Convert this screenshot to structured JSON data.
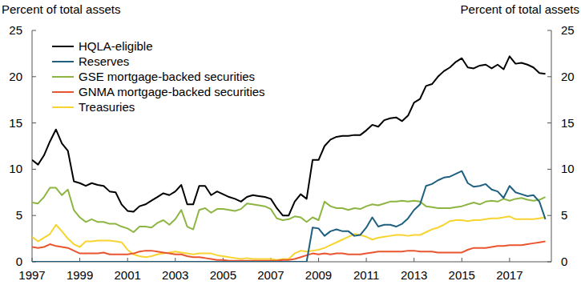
{
  "chart_data": {
    "type": "line",
    "y_label": "Percent of total assets",
    "y2_label": "Percent of total assets",
    "x": [
      1997,
      1997.25,
      1997.5,
      1997.75,
      1998,
      1998.25,
      1998.5,
      1998.75,
      1999,
      1999.25,
      1999.5,
      1999.75,
      2000,
      2000.25,
      2000.5,
      2000.75,
      2001,
      2001.25,
      2001.5,
      2001.75,
      2002,
      2002.25,
      2002.5,
      2002.75,
      2003,
      2003.25,
      2003.5,
      2003.75,
      2004,
      2004.25,
      2004.5,
      2004.75,
      2005,
      2005.25,
      2005.5,
      2005.75,
      2006,
      2006.25,
      2006.5,
      2006.75,
      2007,
      2007.25,
      2007.5,
      2007.75,
      2008,
      2008.25,
      2008.5,
      2008.75,
      2009,
      2009.25,
      2009.5,
      2009.75,
      2010,
      2010.25,
      2010.5,
      2010.75,
      2011,
      2011.25,
      2011.5,
      2011.75,
      2012,
      2012.25,
      2012.5,
      2012.75,
      2013,
      2013.25,
      2013.5,
      2013.75,
      2014,
      2014.25,
      2014.5,
      2014.75,
      2015,
      2015.25,
      2015.5,
      2015.75,
      2016,
      2016.25,
      2016.5,
      2016.75,
      2017,
      2017.25,
      2017.5,
      2017.75,
      2018,
      2018.25,
      2018.5
    ],
    "series": [
      {
        "name": "HQLA-eligible",
        "color": "#000000",
        "values": [
          11,
          10.5,
          11.5,
          13,
          14.3,
          12.8,
          12,
          8.7,
          8.5,
          8.2,
          8.5,
          8.3,
          8.2,
          7.6,
          7.5,
          6.2,
          5.5,
          5.4,
          6,
          6.2,
          6.6,
          7,
          7.4,
          7.2,
          7.6,
          8.3,
          6.2,
          6.2,
          8.2,
          8.2,
          7.2,
          7.6,
          7.3,
          7,
          6.8,
          6.5,
          7,
          7.2,
          7.1,
          7,
          6.8,
          5.8,
          5,
          5,
          6.5,
          7.3,
          6.8,
          11,
          11,
          12.5,
          13.2,
          13.5,
          13.6,
          13.6,
          13.7,
          13.7,
          14.2,
          14.8,
          14.6,
          15.3,
          15.5,
          15.6,
          15.2,
          15.8,
          17.2,
          17.6,
          19,
          19.2,
          20,
          20.6,
          21,
          21.6,
          22,
          21,
          20.9,
          21.2,
          21.3,
          20.9,
          21.3,
          20.8,
          22.2,
          21.4,
          21.5,
          21.3,
          21,
          20.4,
          20.3
        ]
      },
      {
        "name": "Reserves",
        "color": "#1f6080",
        "values": [
          0,
          0,
          0,
          0,
          0,
          0,
          0,
          0,
          0,
          0,
          0,
          0,
          0,
          0,
          0,
          0,
          0,
          0,
          0,
          0,
          0,
          0,
          0,
          0,
          0,
          0,
          0,
          0,
          0,
          0,
          0,
          0,
          0,
          0,
          0,
          0,
          0,
          0,
          0,
          0,
          0,
          0,
          0,
          0,
          0,
          0,
          0,
          3.7,
          3.6,
          2.8,
          3.3,
          3.5,
          3.3,
          3.3,
          2.8,
          2.9,
          3.7,
          4.8,
          3.8,
          4,
          4,
          3.8,
          4.1,
          4.7,
          5.6,
          6.2,
          8.2,
          8.4,
          8.8,
          9.1,
          9.2,
          9.5,
          9.8,
          8.5,
          8.1,
          8.2,
          8.4,
          7.8,
          7.6,
          6.9,
          8.2,
          7.5,
          7.3,
          7.1,
          7.2,
          6.5,
          4.6
        ]
      },
      {
        "name": "GSE mortgage-backed securities",
        "color": "#8db542",
        "values": [
          6.4,
          6.3,
          7,
          8,
          8,
          7.2,
          7.8,
          5.6,
          4.8,
          4.3,
          4.6,
          4.3,
          4.3,
          4.1,
          4.1,
          3.8,
          3.6,
          3.2,
          3.8,
          3.8,
          3.7,
          4.2,
          4.5,
          4,
          4.6,
          5.6,
          3.8,
          3.5,
          5.6,
          5.8,
          5.3,
          5.7,
          5.7,
          5.6,
          5.5,
          5.7,
          6.3,
          6.2,
          6.1,
          6,
          5.7,
          4.7,
          4.5,
          4.6,
          4.9,
          4.8,
          4.3,
          4.8,
          4.5,
          6.5,
          6,
          5.8,
          5.8,
          5.6,
          5.8,
          5.7,
          6,
          6.2,
          6.1,
          6.3,
          6.5,
          6.5,
          6.6,
          6.5,
          6.6,
          6.5,
          6,
          5.9,
          5.8,
          5.8,
          5.8,
          5.9,
          6,
          6.2,
          6.4,
          6.2,
          6.5,
          6.6,
          6.5,
          6.8,
          6.6,
          6.8,
          6.9,
          6.7,
          6.6,
          6.7,
          7
        ]
      },
      {
        "name": "GNMA mortgage-backed securities",
        "color": "#e9552f",
        "values": [
          1.6,
          1.5,
          1.6,
          1.9,
          1.7,
          1.6,
          1.5,
          1.2,
          0.9,
          0.9,
          0.9,
          0.9,
          1,
          0.8,
          0.8,
          0.8,
          0.8,
          0.9,
          1.1,
          1.2,
          1.2,
          1.1,
          1,
          0.9,
          0.8,
          0.8,
          0.6,
          0.5,
          0.5,
          0.4,
          0.3,
          0.2,
          0.2,
          0.1,
          0.1,
          0.1,
          0.1,
          0.1,
          0.1,
          0.1,
          0.1,
          0.1,
          0.2,
          0.2,
          0.3,
          0.5,
          0.7,
          0.9,
          0.8,
          0.9,
          0.8,
          0.9,
          0.9,
          0.8,
          0.8,
          0.8,
          0.9,
          1,
          1.1,
          1.1,
          1.1,
          1.1,
          1.1,
          1.2,
          1.2,
          1.1,
          1.1,
          1.1,
          1,
          1,
          1,
          1,
          1,
          1.3,
          1.5,
          1.5,
          1.5,
          1.6,
          1.7,
          1.7,
          1.8,
          1.8,
          1.8,
          1.9,
          2,
          2.1,
          2.2
        ]
      },
      {
        "name": "Treasuries",
        "color": "#f7d430",
        "values": [
          2.7,
          2.2,
          2.6,
          3,
          4,
          3.3,
          2.5,
          1.9,
          1.6,
          2.2,
          2.2,
          2.3,
          2.3,
          2.3,
          2.2,
          2.1,
          1.3,
          0.8,
          0.6,
          0.5,
          0.6,
          0.8,
          0.9,
          1,
          1.1,
          1,
          0.9,
          0.8,
          0.9,
          0.9,
          0.9,
          0.7,
          0.6,
          0.5,
          0.4,
          0.3,
          0.4,
          0.3,
          0.3,
          0.3,
          0.3,
          0.2,
          0.3,
          0.3,
          0.9,
          1.2,
          1.1,
          1.2,
          1.3,
          1.5,
          1.8,
          2.1,
          2.4,
          2.7,
          3,
          2.9,
          2.7,
          2.4,
          2.6,
          2.7,
          2.8,
          2.9,
          2.9,
          2.8,
          2.9,
          2.9,
          3.2,
          3.5,
          3.7,
          4,
          4.4,
          4.5,
          4.5,
          4.4,
          4.5,
          4.5,
          4.6,
          4.7,
          4.7,
          4.8,
          4.9,
          4.6,
          4.6,
          4.6,
          4.6,
          4.7,
          4.8
        ]
      }
    ],
    "xlim": [
      1997,
      2018.75
    ],
    "xticks": [
      1997,
      1999,
      2001,
      2003,
      2005,
      2007,
      2009,
      2011,
      2013,
      2015,
      2017
    ],
    "ylim": [
      0,
      25
    ],
    "yticks": [
      0,
      5,
      10,
      15,
      20,
      25
    ],
    "y2lim": [
      0,
      25
    ],
    "y2ticks": [
      0,
      5,
      10,
      15,
      20,
      25
    ],
    "legend": "top-left",
    "grid": false
  }
}
